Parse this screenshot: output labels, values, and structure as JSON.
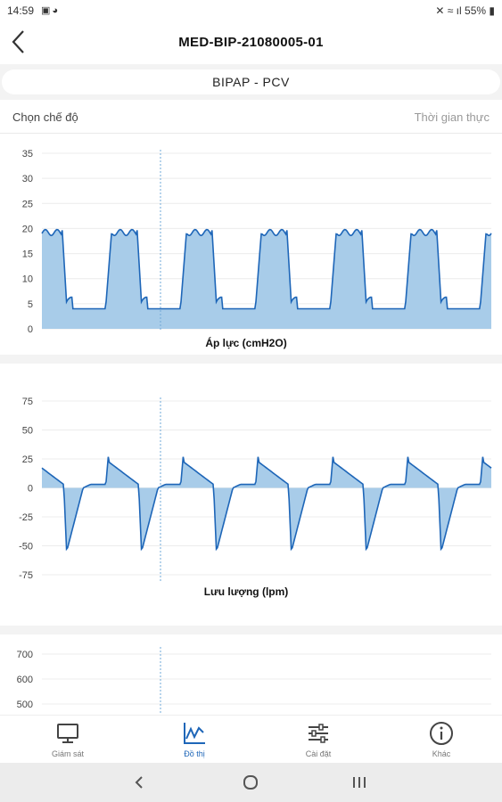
{
  "status_bar": {
    "time": "14:59",
    "battery": "55%"
  },
  "header": {
    "title": "MED-BIP-21080005-01"
  },
  "mode_pill": {
    "label": "BIPAP - PCV"
  },
  "mode_row": {
    "label": "Chọn chế độ",
    "value": "Thời gian thực"
  },
  "colors": {
    "accent": "#1e66b8",
    "fill": "#a8cce9",
    "cursor_line": "#6fa8d8"
  },
  "nav": {
    "items": [
      {
        "label": "Giám sát",
        "icon": "monitor-icon"
      },
      {
        "label": "Đồ thị",
        "icon": "chart-icon"
      },
      {
        "label": "Cài đặt",
        "icon": "sliders-icon"
      },
      {
        "label": "Khác",
        "icon": "info-icon"
      }
    ]
  },
  "chart_data": [
    {
      "type": "area",
      "xlabel": "Áp lực (cmH2O)",
      "ylim": [
        0,
        35
      ],
      "yticks": [
        0,
        5,
        10,
        15,
        20,
        25,
        30,
        35
      ],
      "grid": true,
      "pattern": "pressure",
      "cycles": 6,
      "inspiratory_pressure": 20,
      "peep": 4
    },
    {
      "type": "area",
      "xlabel": "Lưu lượng (lpm)",
      "ylim": [
        -75,
        75
      ],
      "yticks": [
        -75,
        -50,
        -25,
        0,
        25,
        50,
        75
      ],
      "grid": true,
      "pattern": "flow",
      "cycles": 6,
      "peak_inspiratory_flow": 30,
      "peak_expiratory_flow": -55
    },
    {
      "type": "line",
      "ylim": [
        500,
        700
      ],
      "yticks": [
        500,
        600,
        700
      ],
      "grid": true
    }
  ]
}
